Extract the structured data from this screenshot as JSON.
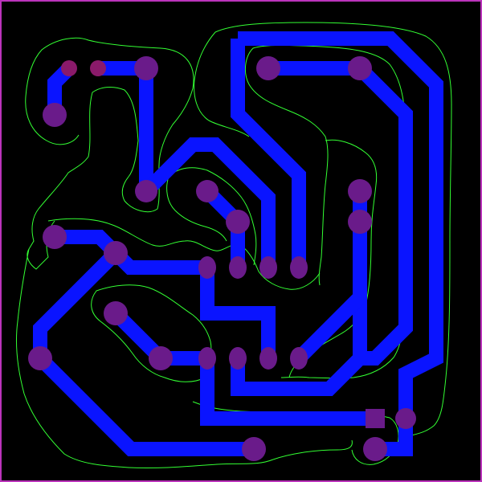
{
  "board": {
    "background_color": "#000000",
    "outline_color": "#bb33bb",
    "track_color": "#0a14ff",
    "pad_color": "#6a1b8a",
    "isolation_color": "#33ff33"
  }
}
